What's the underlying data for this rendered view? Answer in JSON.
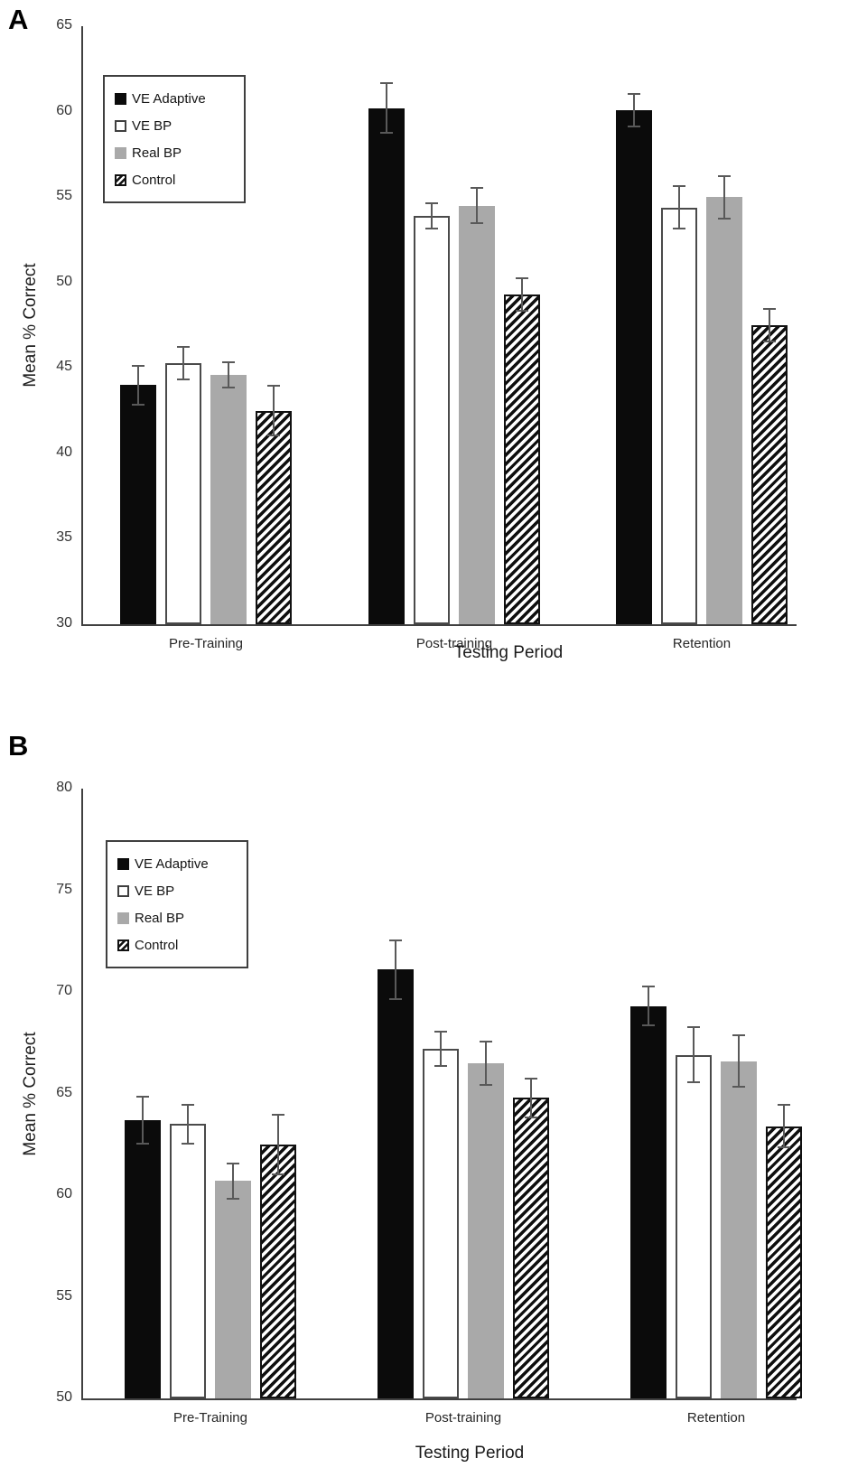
{
  "chart_data": [
    {
      "type": "bar",
      "panel_label": "A",
      "ylabel": "Mean % Correct",
      "xlabel": "Testing Period",
      "ylim": [
        30,
        65
      ],
      "yticks": [
        65,
        60,
        55,
        50,
        45,
        40,
        35,
        30
      ],
      "grid": false,
      "legend_position": "upper-left",
      "categories": [
        "Pre-Training",
        "Post-training",
        "Retention"
      ],
      "series": [
        {
          "name": "VE Adaptive",
          "style": "black",
          "values": [
            44.0,
            60.2,
            60.1
          ],
          "errors": [
            1.2,
            1.5,
            1.0
          ]
        },
        {
          "name": "VE BP",
          "style": "white",
          "values": [
            45.3,
            53.9,
            54.4
          ],
          "errors": [
            1.0,
            0.8,
            1.3
          ]
        },
        {
          "name": "Real BP",
          "style": "gray",
          "values": [
            44.6,
            54.5,
            55.0
          ],
          "errors": [
            0.8,
            1.1,
            1.3
          ]
        },
        {
          "name": "Control",
          "style": "hatch",
          "values": [
            42.5,
            49.3,
            47.5
          ],
          "errors": [
            1.5,
            1.0,
            1.0
          ]
        }
      ]
    },
    {
      "type": "bar",
      "panel_label": "B",
      "ylabel": "Mean % Correct",
      "xlabel": "Testing Period",
      "ylim": [
        50,
        80
      ],
      "yticks": [
        80,
        75,
        70,
        65,
        60,
        55,
        50
      ],
      "grid": false,
      "legend_position": "upper-left",
      "categories": [
        "Pre-Training",
        "Post-training",
        "Retention"
      ],
      "series": [
        {
          "name": "VE Adaptive",
          "style": "black",
          "values": [
            63.7,
            71.1,
            69.3
          ],
          "errors": [
            1.2,
            1.5,
            1.0
          ]
        },
        {
          "name": "VE BP",
          "style": "white",
          "values": [
            63.5,
            67.2,
            66.9
          ],
          "errors": [
            1.0,
            0.9,
            1.4
          ]
        },
        {
          "name": "Real BP",
          "style": "gray",
          "values": [
            60.7,
            66.5,
            66.6
          ],
          "errors": [
            0.9,
            1.1,
            1.3
          ]
        },
        {
          "name": "Control",
          "style": "hatch",
          "values": [
            62.5,
            64.8,
            63.4
          ],
          "errors": [
            1.5,
            1.0,
            1.1
          ]
        }
      ]
    }
  ],
  "colors": {
    "bar_black": "#0b0b0b",
    "bar_white_fill": "#ffffff",
    "bar_white_border": "#4a4a4a",
    "bar_gray": "#a9a9a9",
    "hatch_foreground": "#0f0f0f",
    "axis": "#404040",
    "error_bar": "#595959",
    "text": "#262626",
    "background": "#ffffff"
  }
}
